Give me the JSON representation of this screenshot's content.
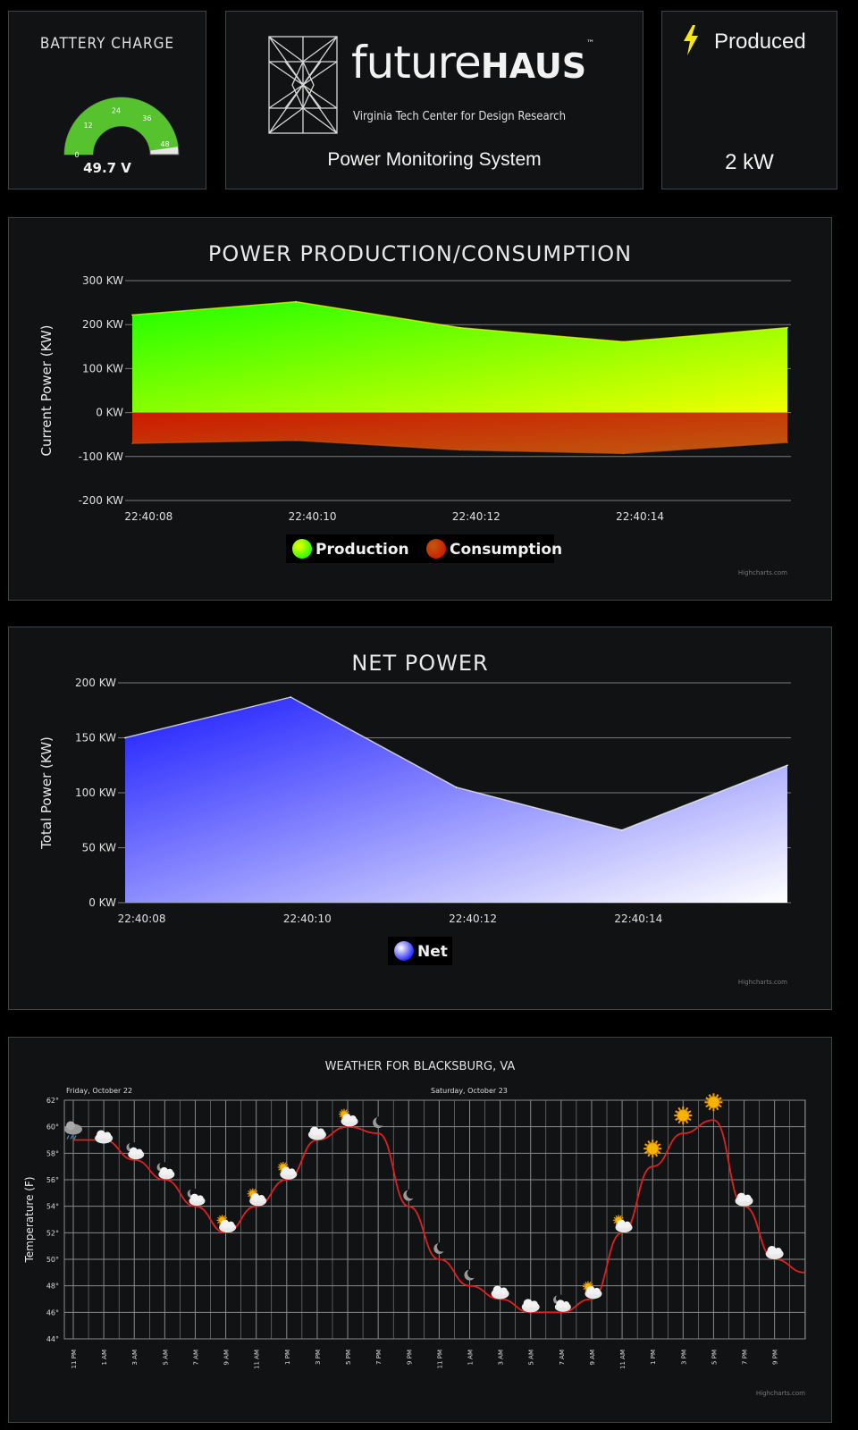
{
  "battery": {
    "title": "BATTERY CHARGE",
    "value_label": "49.7 V",
    "value": 49.7,
    "min": 0,
    "max": 52,
    "ticks": [
      "0",
      "12",
      "24",
      "36",
      "48"
    ],
    "gauge_color": "#55c22e"
  },
  "logo": {
    "name_light": "future",
    "name_bold": "HAUS",
    "trademark": "™",
    "org": "Virginia Tech Center for Design Research",
    "subtitle": "Power Monitoring System"
  },
  "produced": {
    "icon": "lightning-bolt-icon",
    "label": "Produced",
    "value": "2 kW",
    "icon_color": "#f5e61a"
  },
  "power_chart": {
    "title": "POWER PRODUCTION/CONSUMPTION",
    "ylabel": "Current Power (KW)",
    "credit": "Highcharts.com",
    "y_ticks": [
      "300 KW",
      "200 KW",
      "100 KW",
      "0 KW",
      "-100 KW",
      "-200 KW"
    ],
    "x_ticks": [
      "22:40:08",
      "22:40:10",
      "22:40:12",
      "22:40:14"
    ],
    "legend": [
      "Production",
      "Consumption"
    ]
  },
  "net_chart": {
    "title": "NET POWER",
    "ylabel": "Total Power (KW)",
    "credit": "Highcharts.com",
    "y_ticks": [
      "200 KW",
      "150 KW",
      "100 KW",
      "50 KW",
      "0 KW"
    ],
    "x_ticks": [
      "22:40:08",
      "22:40:10",
      "22:40:12",
      "22:40:14"
    ],
    "legend": [
      "Net"
    ]
  },
  "weather_chart": {
    "title": "WEATHER FOR BLACKSBURG, VA",
    "ylabel": "Temperature (F)",
    "credit": "Highcharts.com",
    "day_labels": [
      "Friday, October 22",
      "Saturday, October 23"
    ],
    "y_ticks": [
      "62°",
      "60°",
      "58°",
      "56°",
      "54°",
      "52°",
      "50°",
      "48°",
      "46°",
      "44°"
    ],
    "x_ticks": [
      "11 PM",
      "1 AM",
      "3 AM",
      "5 AM",
      "7 AM",
      "9 AM",
      "11 AM",
      "1 PM",
      "3 PM",
      "5 PM",
      "7 PM",
      "9 PM",
      "11 PM",
      "1 AM",
      "3 AM",
      "5 AM",
      "7 AM",
      "9 AM",
      "11 AM",
      "1 PM",
      "3 PM",
      "5 PM",
      "7 PM",
      "9 PM"
    ]
  },
  "chart_data": [
    {
      "type": "area",
      "title": "POWER PRODUCTION/CONSUMPTION",
      "ylabel": "Current Power (KW)",
      "ylim": [
        -200,
        300
      ],
      "x": [
        "22:40:07.8",
        "22:40:09.8",
        "22:40:11.8",
        "22:40:13.8",
        "22:40:15.8"
      ],
      "series": [
        {
          "name": "Production",
          "values": [
            222,
            252,
            193,
            161,
            193
          ],
          "color_top": "#1fff00",
          "color_bottom": "#f2ff00"
        },
        {
          "name": "Consumption",
          "values": [
            -70,
            -63,
            -85,
            -93,
            -68
          ],
          "color_top": "#cc1a00",
          "color_bottom": "#c05a10"
        }
      ],
      "legend_position": "bottom-center"
    },
    {
      "type": "area",
      "title": "NET POWER",
      "ylabel": "Total Power (KW)",
      "ylim": [
        0,
        200
      ],
      "x": [
        "22:40:07.8",
        "22:40:09.8",
        "22:40:11.8",
        "22:40:13.8",
        "22:40:15.8"
      ],
      "series": [
        {
          "name": "Net",
          "values": [
            150,
            187,
            105,
            66,
            125
          ],
          "color_top": "#1a1aff",
          "color_bottom": "#ffffff"
        }
      ],
      "legend_position": "bottom-center"
    },
    {
      "type": "line",
      "title": "WEATHER FOR BLACKSBURG, VA",
      "ylabel": "Temperature (F)",
      "ylim": [
        44,
        62
      ],
      "x": [
        "11 PM",
        "1 AM",
        "3 AM",
        "5 AM",
        "7 AM",
        "9 AM",
        "11 AM",
        "1 PM",
        "3 PM",
        "5 PM",
        "7 PM",
        "9 PM",
        "11 PM",
        "1 AM",
        "3 AM",
        "5 AM",
        "7 AM",
        "9 AM",
        "11 AM",
        "1 PM",
        "3 PM",
        "5 PM",
        "7 PM",
        "9 PM",
        "11 PM"
      ],
      "series": [
        {
          "name": "Temperature",
          "color": "#e02020",
          "values": [
            59,
            59,
            57.5,
            56,
            54,
            52,
            54,
            56,
            59,
            60,
            59.5,
            54,
            50,
            48,
            47,
            46,
            46,
            47,
            52,
            57,
            59.5,
            60.5,
            54,
            50,
            49
          ]
        }
      ],
      "icons": [
        "rain-cloud",
        "cloud",
        "moon-cloud",
        "moon-cloud",
        "moon-cloud",
        "sun-cloud",
        "sun-cloud",
        "sun-cloud",
        "cloud",
        "sun-cloud",
        "moon",
        "moon",
        "moon",
        "moon",
        "cloud",
        "cloud",
        "moon-cloud",
        "sun-cloud",
        "sun-cloud",
        "sun",
        "sun",
        "sun",
        "cloud",
        "cloud"
      ]
    }
  ]
}
